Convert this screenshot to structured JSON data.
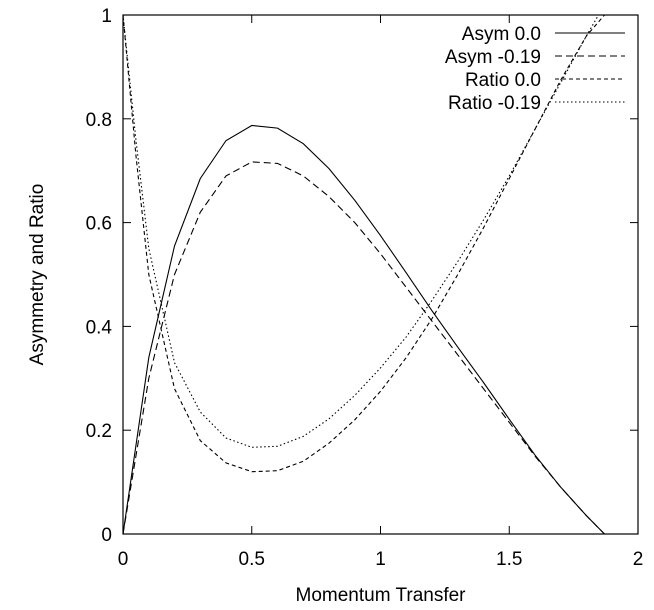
{
  "chart_data": {
    "type": "line",
    "title": "",
    "xlabel": "Momentum Transfer",
    "ylabel": "Asymmetry  and Ratio",
    "xlim": [
      0,
      2
    ],
    "ylim": [
      0,
      1
    ],
    "xticks": [
      "0",
      "0.5",
      "1",
      "1.5",
      "2"
    ],
    "yticks": [
      "0",
      "0.2",
      "0.4",
      "0.6",
      "0.8",
      "1"
    ],
    "grid": false,
    "legend_position": "top-right",
    "series": [
      {
        "name": "Asym 0.0",
        "dash": "solid",
        "x": [
          0,
          0.1,
          0.2,
          0.3,
          0.4,
          0.5,
          0.6,
          0.7,
          0.8,
          0.9,
          1.0,
          1.1,
          1.2,
          1.3,
          1.4,
          1.5,
          1.6,
          1.7,
          1.8,
          1.87
        ],
        "y": [
          0,
          0.34,
          0.555,
          0.685,
          0.758,
          0.787,
          0.782,
          0.752,
          0.704,
          0.643,
          0.575,
          0.503,
          0.43,
          0.36,
          0.292,
          0.221,
          0.152,
          0.09,
          0.035,
          0
        ]
      },
      {
        "name": "Asym -0.19",
        "dash": "dashed",
        "x": [
          0,
          0.1,
          0.2,
          0.3,
          0.4,
          0.5,
          0.6,
          0.7,
          0.8,
          0.9,
          1.0,
          1.1,
          1.2,
          1.3,
          1.4,
          1.5,
          1.6,
          1.7,
          1.8,
          1.87
        ],
        "y": [
          0,
          0.3,
          0.5,
          0.62,
          0.69,
          0.717,
          0.714,
          0.69,
          0.65,
          0.6,
          0.54,
          0.475,
          0.41,
          0.345,
          0.28,
          0.215,
          0.15,
          0.09,
          0.035,
          0
        ]
      },
      {
        "name": "Ratio 0.0",
        "dash": "short-dashed",
        "x": [
          0,
          0.05,
          0.1,
          0.2,
          0.3,
          0.4,
          0.5,
          0.6,
          0.7,
          0.8,
          0.9,
          1.0,
          1.1,
          1.2,
          1.3,
          1.4,
          1.5,
          1.6,
          1.7,
          1.8,
          1.87
        ],
        "y": [
          1,
          0.73,
          0.5,
          0.28,
          0.18,
          0.137,
          0.12,
          0.122,
          0.14,
          0.175,
          0.22,
          0.275,
          0.34,
          0.415,
          0.5,
          0.59,
          0.685,
          0.78,
          0.875,
          0.96,
          1.0
        ]
      },
      {
        "name": "Ratio -0.19",
        "dash": "dotted",
        "x": [
          0,
          0.05,
          0.1,
          0.2,
          0.3,
          0.4,
          0.5,
          0.6,
          0.7,
          0.8,
          0.9,
          1.0,
          1.1,
          1.2,
          1.3,
          1.4,
          1.5,
          1.6,
          1.7,
          1.8,
          1.87
        ],
        "y": [
          1,
          0.76,
          0.55,
          0.33,
          0.235,
          0.185,
          0.167,
          0.169,
          0.188,
          0.222,
          0.267,
          0.32,
          0.38,
          0.45,
          0.525,
          0.605,
          0.69,
          0.78,
          0.87,
          0.96,
          1.02
        ]
      }
    ]
  }
}
